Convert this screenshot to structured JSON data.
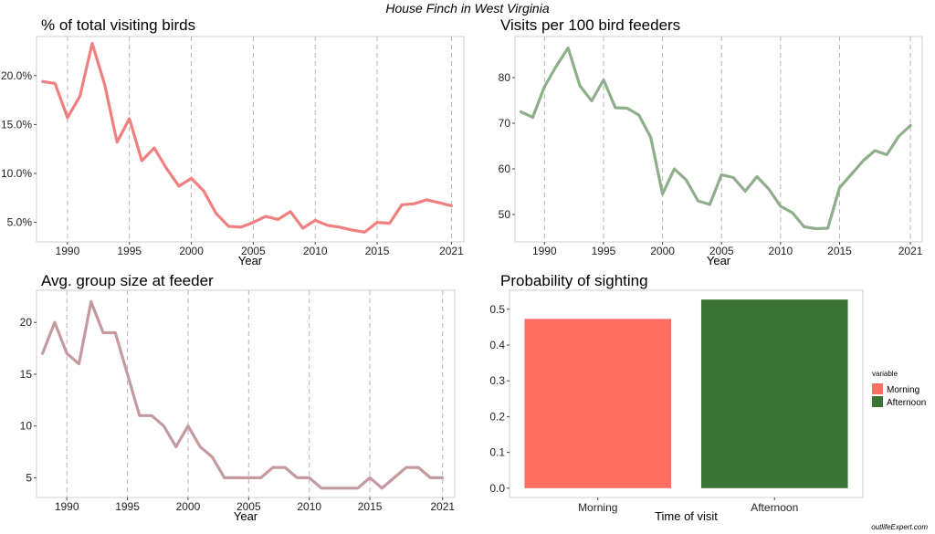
{
  "figure": {
    "title": "House Finch in West Virginia",
    "credit": "outlifeExpert.com"
  },
  "chart_data": [
    {
      "id": "pct",
      "type": "line",
      "title": "% of total visiting birds",
      "xlabel": "Year",
      "ylabel": "",
      "color": "#F08080",
      "xticks": [
        1990,
        1995,
        2000,
        2005,
        2010,
        2015,
        2021
      ],
      "yticks": [
        5,
        10,
        15,
        20
      ],
      "ytick_labels": [
        "5.0%",
        "10.0%",
        "15.0%",
        "20.0%"
      ],
      "xlim": [
        1987.5,
        2022
      ],
      "ylim": [
        3,
        24
      ],
      "grid": "vertical-dashed",
      "x": [
        1988,
        1989,
        1990,
        1991,
        1992,
        1993,
        1994,
        1995,
        1996,
        1997,
        1998,
        1999,
        2000,
        2001,
        2002,
        2003,
        2004,
        2005,
        2006,
        2007,
        2008,
        2009,
        2010,
        2011,
        2012,
        2013,
        2014,
        2015,
        2016,
        2017,
        2018,
        2019,
        2020,
        2021
      ],
      "y": [
        19.4,
        19.2,
        15.7,
        17.9,
        23.3,
        19.1,
        13.2,
        15.6,
        11.3,
        12.6,
        10.5,
        8.7,
        9.5,
        8.2,
        5.9,
        4.6,
        4.5,
        5.0,
        5.6,
        5.3,
        6.1,
        4.4,
        5.2,
        4.7,
        4.5,
        4.2,
        4.0,
        5.0,
        4.9,
        6.8,
        6.9,
        7.3,
        7.0,
        6.7
      ]
    },
    {
      "id": "visits",
      "type": "line",
      "title": "Visits per 100 bird feeders",
      "xlabel": "Year",
      "ylabel": "",
      "color": "#8FAE8B",
      "xticks": [
        1990,
        1995,
        2000,
        2005,
        2010,
        2015,
        2021
      ],
      "yticks": [
        50,
        60,
        70,
        80
      ],
      "ytick_labels": [
        "50",
        "60",
        "70",
        "80"
      ],
      "xlim": [
        1987.5,
        2022
      ],
      "ylim": [
        44,
        89
      ],
      "grid": "vertical-dashed",
      "x": [
        1988,
        1989,
        1990,
        1991,
        1992,
        1993,
        1994,
        1995,
        1996,
        1997,
        1998,
        1999,
        2000,
        2001,
        2002,
        2003,
        2004,
        2005,
        2006,
        2007,
        2008,
        2009,
        2010,
        2011,
        2012,
        2013,
        2014,
        2015,
        2016,
        2017,
        2018,
        2019,
        2020,
        2021
      ],
      "y": [
        72.5,
        71.3,
        78.0,
        82.5,
        86.5,
        78.2,
        74.9,
        79.5,
        73.4,
        73.3,
        71.8,
        66.9,
        54.5,
        60.0,
        57.6,
        53.0,
        52.2,
        58.7,
        58.1,
        55.1,
        58.3,
        55.6,
        51.8,
        50.4,
        47.3,
        46.9,
        47.0,
        55.9,
        58.8,
        61.8,
        64.0,
        63.1,
        67.1,
        69.5
      ]
    },
    {
      "id": "group",
      "type": "line",
      "title": "Avg. group size at feeder",
      "xlabel": "Year",
      "ylabel": "",
      "color": "#C49A9E",
      "xticks": [
        1990,
        1995,
        2000,
        2005,
        2010,
        2015,
        2021
      ],
      "yticks": [
        5,
        10,
        15,
        20
      ],
      "ytick_labels": [
        "5",
        "10",
        "15",
        "20"
      ],
      "xlim": [
        1987.5,
        2022
      ],
      "ylim": [
        3.1,
        23.1
      ],
      "grid": "vertical-dashed",
      "x": [
        1988,
        1989,
        1990,
        1991,
        1992,
        1993,
        1994,
        1995,
        1996,
        1997,
        1998,
        1999,
        2000,
        2001,
        2002,
        2003,
        2004,
        2005,
        2006,
        2007,
        2008,
        2009,
        2010,
        2011,
        2012,
        2013,
        2014,
        2015,
        2016,
        2017,
        2018,
        2019,
        2020,
        2021
      ],
      "y": [
        17,
        20,
        17,
        16,
        22,
        19,
        19,
        15,
        11,
        11,
        10,
        8,
        10,
        8,
        7,
        5,
        5,
        5,
        5,
        6,
        6,
        5,
        5,
        4,
        4,
        4,
        4,
        5,
        4,
        5,
        6,
        6,
        5,
        5
      ]
    },
    {
      "id": "prob",
      "type": "bar",
      "title": "Probability of sighting",
      "xlabel": "Time of visit",
      "ylabel": "",
      "categories": [
        "Morning",
        "Afternoon"
      ],
      "values": [
        0.473,
        0.527
      ],
      "colors": [
        "#FF6F61",
        "#3A7434"
      ],
      "yticks": [
        0,
        0.1,
        0.2,
        0.3,
        0.4,
        0.5
      ],
      "ytick_labels": [
        "0.0",
        "0.1",
        "0.2",
        "0.3",
        "0.4",
        "0.5"
      ],
      "ylim": [
        -0.026,
        0.553
      ],
      "grid": "none",
      "legend": {
        "title": "variable",
        "placement": "right",
        "entries": [
          "Morning",
          "Afternoon"
        ]
      }
    }
  ]
}
